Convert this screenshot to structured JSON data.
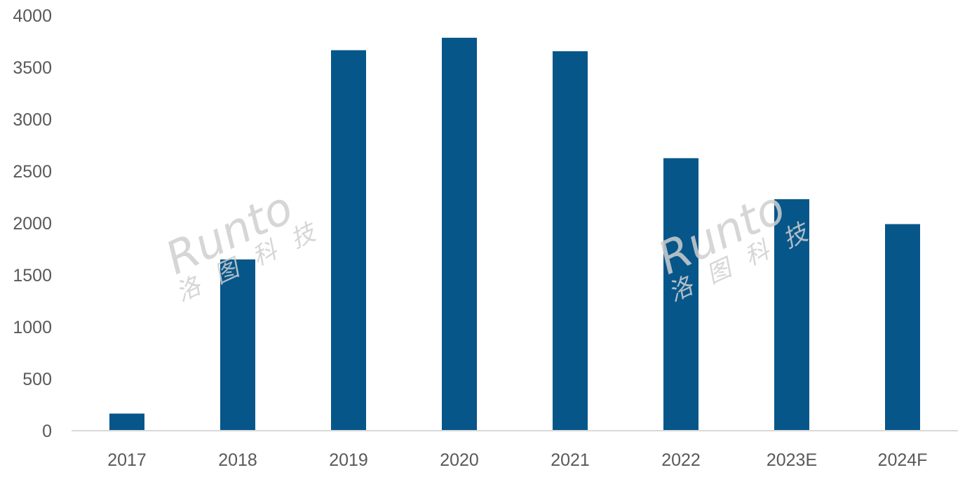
{
  "chart_data": {
    "type": "bar",
    "title": "",
    "xlabel": "",
    "ylabel": "",
    "categories": [
      "2017",
      "2018",
      "2019",
      "2020",
      "2021",
      "2022",
      "2023E",
      "2024F"
    ],
    "values": [
      165,
      1650,
      3665,
      3785,
      3655,
      2625,
      2230,
      1990
    ],
    "ylim": [
      0,
      4000
    ],
    "yticks": [
      "0",
      "500",
      "1000",
      "1500",
      "2000",
      "2500",
      "3000",
      "3500",
      "4000"
    ],
    "grid": false,
    "legend": "none",
    "bar_color": "#06568A",
    "axis_color": "#d9d9d9"
  },
  "watermark": {
    "brand": "Runto",
    "cn_chars": [
      "洛",
      "图",
      "科",
      "技"
    ]
  }
}
